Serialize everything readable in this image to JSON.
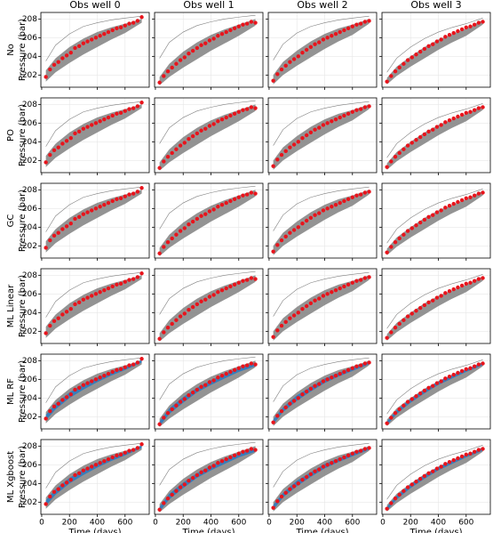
{
  "chart_data": {
    "type": "line-grid",
    "col_titles": [
      "Obs well 0",
      "Obs well 1",
      "Obs well 2",
      "Obs well 3"
    ],
    "rows": [
      {
        "label": "No",
        "posterior": false
      },
      {
        "label": "PO",
        "posterior": false
      },
      {
        "label": "GC",
        "posterior": false
      },
      {
        "label": "ML Linear",
        "posterior": false
      },
      {
        "label": "ML RF",
        "posterior": true
      },
      {
        "label": "ML Xgboost",
        "posterior": true
      }
    ],
    "ylabel": "Pressure (bar)",
    "xlabel": "Time (days)",
    "xlim": [
      -6,
      774
    ],
    "xticks": [
      0,
      200,
      400,
      600
    ],
    "ylim": [
      200.7,
      208.7
    ],
    "yticks": [
      202,
      204,
      206,
      208
    ],
    "grid": true,
    "obs_color": "#e8141c",
    "ensemble_color": "#808080",
    "posterior_color": "#2f7bbf",
    "obs_x": [
      30,
      60,
      90,
      120,
      150,
      180,
      210,
      240,
      270,
      300,
      330,
      360,
      390,
      420,
      450,
      480,
      510,
      540,
      570,
      600,
      630,
      660,
      690,
      720
    ],
    "env_x": [
      30,
      100,
      200,
      300,
      400,
      500,
      600,
      720
    ],
    "columns": [
      {
        "obs": [
          201.8,
          202.6,
          203.1,
          203.4,
          203.8,
          204.1,
          204.4,
          204.9,
          205.1,
          205.4,
          205.6,
          205.8,
          206.0,
          206.2,
          206.4,
          206.6,
          206.8,
          207.0,
          207.1,
          207.3,
          207.5,
          207.6,
          207.8,
          208.2
        ],
        "ens_low": [
          201.3,
          202.3,
          203.3,
          204.2,
          205.0,
          205.8,
          206.5,
          207.6
        ],
        "ens_high": [
          202.5,
          203.8,
          205.0,
          205.9,
          206.6,
          207.1,
          207.5,
          208.0
        ],
        "outlier": [
          203.5,
          205.2,
          206.4,
          207.2,
          207.6,
          207.9,
          208.1,
          208.3
        ],
        "post_low": [
          201.6,
          202.8,
          204.0,
          204.9,
          205.7,
          206.4,
          207.0,
          207.8
        ],
        "post_high": [
          202.2,
          203.4,
          204.6,
          205.5,
          206.2,
          206.8,
          207.3,
          208.1
        ]
      },
      {
        "obs": [
          201.2,
          201.9,
          202.4,
          202.8,
          203.2,
          203.6,
          203.9,
          204.3,
          204.6,
          204.9,
          205.2,
          205.4,
          205.7,
          205.9,
          206.2,
          206.4,
          206.6,
          206.8,
          207.0,
          207.2,
          207.4,
          207.5,
          207.7,
          207.6
        ],
        "ens_low": [
          200.9,
          201.8,
          202.8,
          203.7,
          204.6,
          205.4,
          206.2,
          207.3
        ],
        "ens_high": [
          201.8,
          203.2,
          204.5,
          205.5,
          206.3,
          206.9,
          207.4,
          208.0
        ],
        "outlier": [
          203.8,
          205.5,
          206.6,
          207.3,
          207.7,
          208.0,
          208.2,
          208.4
        ],
        "post_low": [
          201.0,
          202.3,
          203.5,
          204.6,
          205.4,
          206.1,
          206.8,
          207.4
        ],
        "post_high": [
          201.5,
          202.9,
          204.1,
          205.1,
          205.9,
          206.6,
          207.2,
          207.8
        ]
      },
      {
        "obs": [
          201.4,
          202.1,
          202.6,
          203.0,
          203.4,
          203.7,
          204.0,
          204.4,
          204.7,
          205.0,
          205.3,
          205.5,
          205.8,
          206.0,
          206.2,
          206.4,
          206.6,
          206.8,
          207.0,
          207.2,
          207.4,
          207.5,
          207.7,
          207.8
        ],
        "ens_low": [
          201.0,
          202.0,
          203.0,
          203.9,
          204.8,
          205.6,
          206.3,
          207.5
        ],
        "ens_high": [
          202.0,
          203.4,
          204.6,
          205.6,
          206.4,
          207.0,
          207.4,
          208.0
        ],
        "outlier": [
          203.6,
          205.3,
          206.5,
          207.2,
          207.6,
          207.9,
          208.1,
          208.3
        ],
        "post_low": [
          201.2,
          202.5,
          203.7,
          204.7,
          205.6,
          206.3,
          206.9,
          207.6
        ],
        "post_high": [
          201.7,
          203.0,
          204.3,
          205.2,
          206.1,
          206.7,
          207.3,
          207.9
        ]
      },
      {
        "obs": [
          201.3,
          201.9,
          202.4,
          202.8,
          203.2,
          203.6,
          203.9,
          204.2,
          204.5,
          204.8,
          205.1,
          205.3,
          205.6,
          205.8,
          206.1,
          206.3,
          206.5,
          206.7,
          206.9,
          207.1,
          207.2,
          207.4,
          207.6,
          207.7
        ],
        "ens_low": [
          201.0,
          201.9,
          202.9,
          203.8,
          204.7,
          205.5,
          206.2,
          207.4
        ],
        "ens_high": [
          201.7,
          202.9,
          204.0,
          205.0,
          205.8,
          206.4,
          207.0,
          207.9
        ],
        "outlier": [
          202.3,
          203.8,
          205.0,
          205.9,
          206.6,
          207.1,
          207.5,
          208.1
        ],
        "post_low": [
          201.1,
          202.3,
          203.5,
          204.5,
          205.4,
          206.1,
          206.8,
          207.5
        ],
        "post_high": [
          201.5,
          202.7,
          203.9,
          204.9,
          205.8,
          206.5,
          207.1,
          207.8
        ]
      }
    ]
  }
}
